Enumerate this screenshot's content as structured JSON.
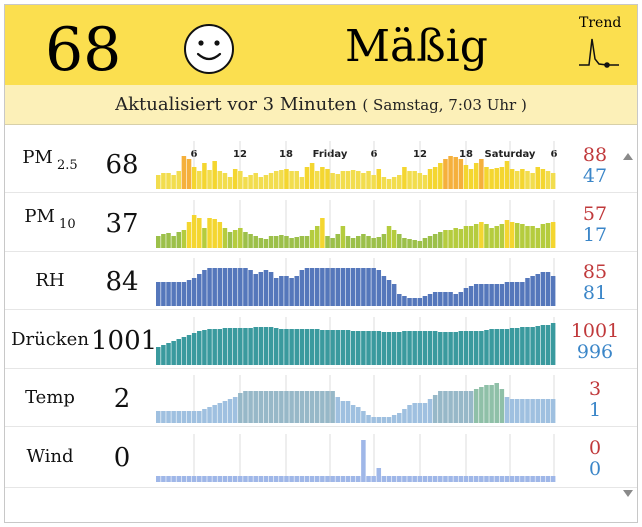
{
  "header": {
    "aqi": "68",
    "condition": "Mäßig",
    "trend_label": "Trend",
    "face_icon": "smiley-face-icon",
    "color": "#fbdf4f"
  },
  "updated": {
    "text": "Aktualisiert vor 3 Minuten",
    "paren": "( Samstag, 7:03 Uhr )"
  },
  "time_axis": [
    "6",
    "12",
    "18",
    "Friday",
    "6",
    "12",
    "18",
    "Saturday",
    "6"
  ],
  "rows": [
    {
      "key": "pm25",
      "label": "PM",
      "sub": "2.5",
      "value": "68",
      "max": "88",
      "min": "47",
      "bars": [
        14,
        16,
        16,
        14,
        18,
        33,
        30,
        22,
        18,
        26,
        19,
        28,
        18,
        16,
        12,
        20,
        18,
        12,
        14,
        16,
        12,
        14,
        16,
        18,
        19,
        20,
        18,
        18,
        12,
        22,
        26,
        18,
        22,
        20,
        16,
        15,
        18,
        18,
        19,
        18,
        16,
        18,
        14,
        20,
        12,
        10,
        12,
        14,
        22,
        18,
        18,
        16,
        14,
        20,
        22,
        26,
        30,
        33,
        32,
        30,
        24,
        20,
        26,
        30,
        22,
        20,
        21,
        22,
        28,
        20,
        18,
        20,
        18,
        16,
        22,
        20,
        18,
        16
      ]
    },
    {
      "key": "pm10",
      "label": "PM",
      "sub": "10",
      "value": "37",
      "max": "57",
      "min": "17",
      "bars": [
        12,
        14,
        15,
        12,
        16,
        18,
        26,
        33,
        30,
        20,
        30,
        29,
        26,
        20,
        16,
        18,
        20,
        16,
        14,
        12,
        10,
        9,
        12,
        12,
        13,
        12,
        10,
        11,
        12,
        12,
        18,
        22,
        30,
        12,
        10,
        14,
        22,
        12,
        10,
        12,
        14,
        12,
        10,
        11,
        14,
        22,
        18,
        14,
        10,
        9,
        8,
        7,
        10,
        12,
        14,
        16,
        18,
        18,
        20,
        19,
        22,
        22,
        24,
        26,
        24,
        20,
        22,
        24,
        28,
        26,
        25,
        24,
        22,
        22,
        20,
        24,
        25,
        26
      ]
    },
    {
      "key": "rh",
      "label": "RH",
      "sub": "",
      "value": "84",
      "max": "85",
      "min": "81",
      "bars": [
        24,
        24,
        24,
        24,
        24,
        24,
        26,
        28,
        32,
        36,
        38,
        38,
        38,
        38,
        38,
        38,
        38,
        38,
        36,
        32,
        34,
        36,
        34,
        28,
        30,
        30,
        28,
        30,
        36,
        38,
        38,
        38,
        38,
        38,
        38,
        38,
        38,
        38,
        38,
        38,
        38,
        38,
        38,
        36,
        30,
        26,
        22,
        12,
        10,
        8,
        8,
        8,
        10,
        12,
        14,
        14,
        14,
        14,
        12,
        14,
        18,
        20,
        22,
        22,
        22,
        22,
        22,
        22,
        24,
        24,
        24,
        24,
        28,
        30,
        32,
        34,
        34,
        30
      ]
    },
    {
      "key": "pressure",
      "label": "Drücken",
      "sub": "",
      "value": "1001",
      "max": "1001",
      "min": "996",
      "bars": [
        18,
        20,
        22,
        24,
        26,
        28,
        30,
        32,
        34,
        35,
        36,
        36,
        36,
        37,
        37,
        37,
        37,
        37,
        37,
        38,
        38,
        38,
        38,
        37,
        36,
        36,
        36,
        36,
        36,
        36,
        36,
        36,
        35,
        35,
        35,
        35,
        35,
        35,
        34,
        34,
        34,
        34,
        34,
        34,
        33,
        33,
        33,
        33,
        34,
        34,
        34,
        34,
        34,
        34,
        34,
        33,
        33,
        33,
        33,
        34,
        34,
        34,
        34,
        34,
        35,
        36,
        36,
        36,
        36,
        37,
        37,
        38,
        38,
        38,
        39,
        40,
        40,
        42
      ]
    },
    {
      "key": "temp",
      "label": "Temp",
      "sub": "",
      "value": "2",
      "max": "3",
      "min": "1",
      "bars": [
        12,
        12,
        12,
        12,
        12,
        12,
        12,
        12,
        12,
        14,
        16,
        18,
        20,
        22,
        24,
        26,
        30,
        32,
        32,
        32,
        32,
        32,
        32,
        32,
        32,
        32,
        32,
        32,
        32,
        32,
        32,
        32,
        32,
        32,
        32,
        26,
        22,
        22,
        18,
        16,
        12,
        8,
        6,
        6,
        6,
        6,
        8,
        10,
        14,
        18,
        20,
        20,
        20,
        24,
        28,
        32,
        32,
        32,
        32,
        32,
        32,
        32,
        34,
        36,
        38,
        38,
        40,
        34,
        26,
        24,
        24,
        24,
        24,
        24,
        24,
        24,
        24,
        24
      ]
    },
    {
      "key": "wind",
      "label": "Wind",
      "sub": "",
      "value": "0",
      "max": "0",
      "min": "0",
      "bars": [
        6,
        6,
        6,
        6,
        6,
        6,
        6,
        6,
        6,
        6,
        6,
        6,
        6,
        6,
        6,
        6,
        6,
        6,
        6,
        6,
        6,
        6,
        6,
        6,
        6,
        6,
        6,
        6,
        6,
        6,
        6,
        6,
        6,
        6,
        6,
        6,
        6,
        6,
        6,
        6,
        42,
        6,
        6,
        14,
        6,
        6,
        6,
        6,
        6,
        6,
        6,
        6,
        6,
        6,
        6,
        6,
        6,
        6,
        6,
        6,
        6,
        6,
        6,
        6,
        6,
        6,
        6,
        6,
        6,
        6,
        6,
        6,
        6,
        6,
        6,
        6,
        6,
        6
      ]
    }
  ],
  "colors": {
    "max": "#c0393b",
    "min": "#3b86c8",
    "rh": "#5577bb",
    "pressure": "#3a9a9e",
    "wind": "#9fb7e8",
    "temp_low": "#9fc0e0",
    "temp_high": "#8fc0a8"
  }
}
